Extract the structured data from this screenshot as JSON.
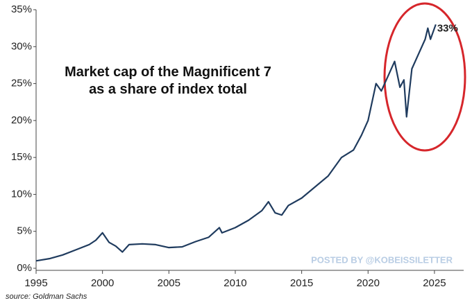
{
  "chart_data": {
    "type": "line",
    "title": "Market cap of the Magnificent 7 as a share of index total",
    "source": "source: Goldman Sachs",
    "watermark": "POSTED BY @KOBEISSILETTER",
    "xlim": [
      1995,
      2027.2
    ],
    "xticks": [
      1995,
      2000,
      2005,
      2010,
      2015,
      2020,
      2025
    ],
    "ylim": [
      0,
      35
    ],
    "yticks": [
      {
        "value": 0,
        "label": "0%"
      },
      {
        "value": 5,
        "label": "5%"
      },
      {
        "value": 10,
        "label": "10%"
      },
      {
        "value": 15,
        "label": "15%"
      },
      {
        "value": 20,
        "label": "20%"
      },
      {
        "value": 25,
        "label": "25%"
      },
      {
        "value": 30,
        "label": "30%"
      },
      {
        "value": 35,
        "label": "35%"
      }
    ],
    "grid": false,
    "series": [
      {
        "name": "Magnificent 7 share",
        "color": "#1f3b5e",
        "x": [
          1995,
          1996,
          1997,
          1998,
          1999,
          1999.5,
          2000,
          2000.5,
          2001,
          2001.5,
          2002,
          2003,
          2004,
          2005,
          2006,
          2007,
          2008,
          2008.8,
          2009,
          2010,
          2011,
          2012,
          2012.5,
          2013,
          2013.5,
          2014,
          2015,
          2016,
          2017,
          2018,
          2018.9,
          2019.5,
          2020,
          2020.6,
          2021,
          2021.5,
          2022,
          2022.4,
          2022.7,
          2022.9,
          2023.3,
          2023.8,
          2024.3,
          2024.5,
          2024.7,
          2025.1
        ],
        "values": [
          1.0,
          1.3,
          1.8,
          2.5,
          3.2,
          3.8,
          4.8,
          3.5,
          3.0,
          2.2,
          3.2,
          3.3,
          3.2,
          2.8,
          2.9,
          3.6,
          4.2,
          5.5,
          4.8,
          5.5,
          6.5,
          7.8,
          9.0,
          7.5,
          7.2,
          8.5,
          9.5,
          11,
          12.5,
          15,
          16,
          18,
          20,
          25,
          24,
          26,
          28,
          24.5,
          25.5,
          20.5,
          27,
          29,
          31,
          32.5,
          31,
          33
        ],
        "value_labels": [
          null,
          null,
          null,
          null,
          null,
          null,
          null,
          null,
          null,
          null,
          null,
          null,
          null,
          null,
          null,
          null,
          null,
          null,
          null,
          null,
          null,
          null,
          null,
          null,
          null,
          null,
          null,
          null,
          null,
          null,
          null,
          null,
          null,
          null,
          null,
          null,
          null,
          null,
          null,
          null,
          null,
          null,
          null,
          null,
          null,
          "33%"
        ]
      }
    ]
  }
}
